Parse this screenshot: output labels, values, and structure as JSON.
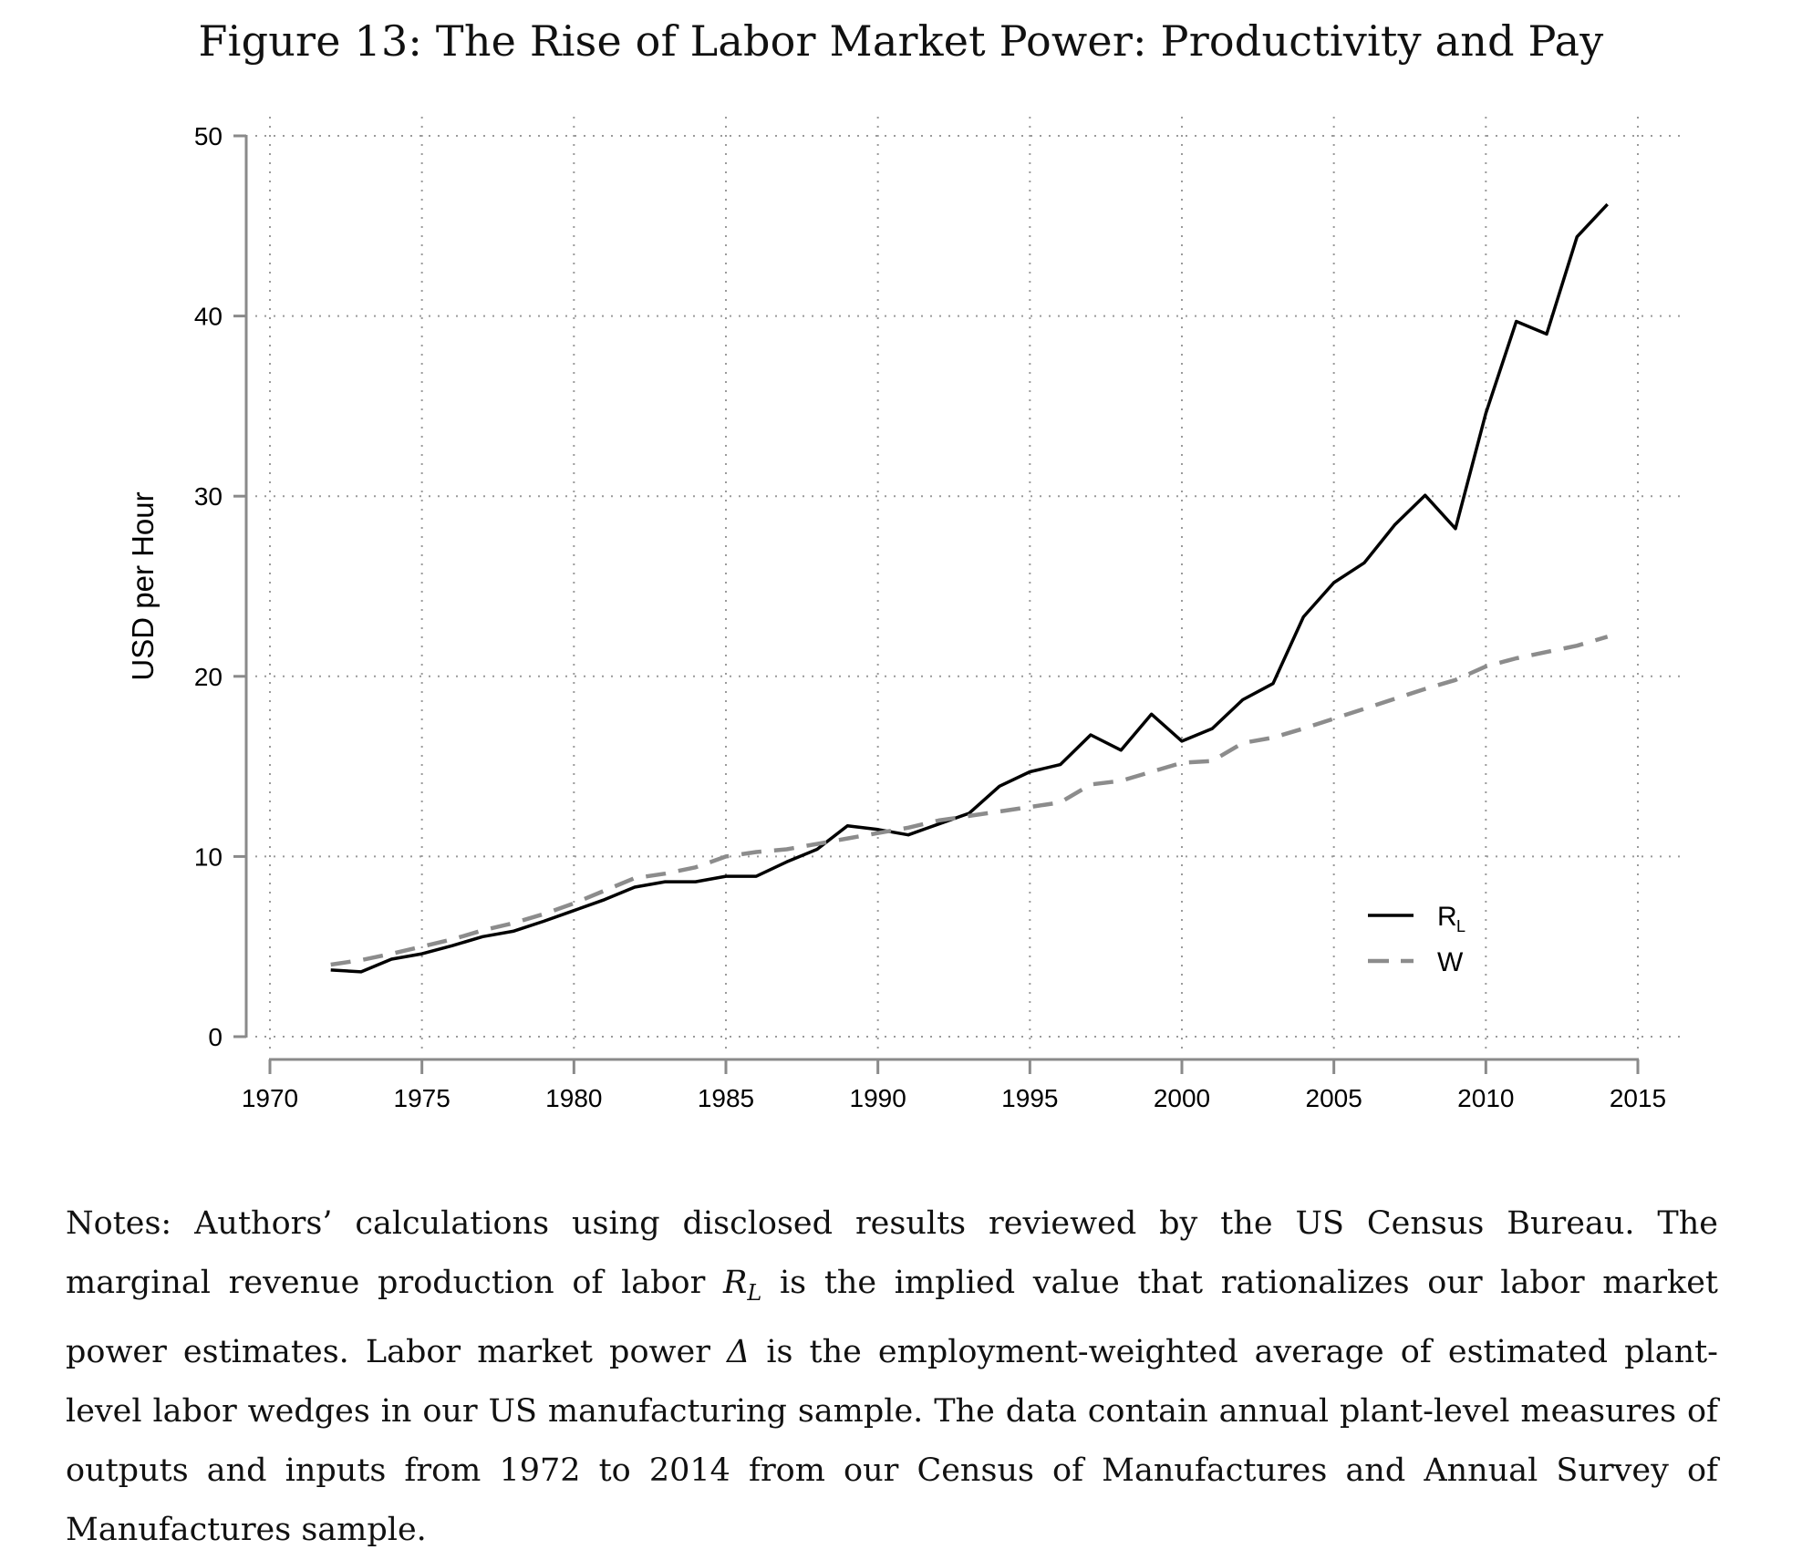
{
  "figure": {
    "title": "Figure 13: The Rise of Labor Market Power: Productivity and Pay"
  },
  "chart_data": {
    "type": "line",
    "title": "Figure 13: The Rise of Labor Market Power: Productivity and Pay",
    "xlabel": "",
    "ylabel": "USD per Hour",
    "xlim": [
      1970,
      2015
    ],
    "ylim": [
      0,
      50
    ],
    "xticks": [
      1970,
      1975,
      1980,
      1985,
      1990,
      1995,
      2000,
      2005,
      2010,
      2015
    ],
    "yticks": [
      0,
      10,
      20,
      30,
      40,
      50
    ],
    "grid": true,
    "legend_position": "bottom-right-inside",
    "x": [
      1972,
      1973,
      1974,
      1975,
      1976,
      1977,
      1978,
      1979,
      1980,
      1981,
      1982,
      1983,
      1984,
      1985,
      1986,
      1987,
      1988,
      1989,
      1990,
      1991,
      1992,
      1993,
      1994,
      1995,
      1996,
      1997,
      1998,
      1999,
      2000,
      2001,
      2002,
      2003,
      2004,
      2005,
      2006,
      2007,
      2008,
      2009,
      2010,
      2011,
      2012,
      2013,
      2014
    ],
    "series": [
      {
        "name": "R_L",
        "label_main": "R",
        "label_sub": "L",
        "style": "solid",
        "color": "#000000",
        "values": [
          3.7,
          3.6,
          4.3,
          4.6,
          5.05,
          5.55,
          5.85,
          6.4,
          7.0,
          7.6,
          8.3,
          8.6,
          8.6,
          8.9,
          8.9,
          9.7,
          10.4,
          11.7,
          11.5,
          11.2,
          11.8,
          12.4,
          13.9,
          14.7,
          15.1,
          16.75,
          15.9,
          17.9,
          16.4,
          17.1,
          18.7,
          19.6,
          23.3,
          25.2,
          26.3,
          28.4,
          30.05,
          28.2,
          34.6,
          39.7,
          39.0,
          44.4,
          46.2
        ]
      },
      {
        "name": "W",
        "label_main": "W",
        "label_sub": "",
        "style": "dashed",
        "color": "#8c8c8c",
        "values": [
          4.0,
          4.25,
          4.6,
          5.0,
          5.4,
          5.9,
          6.3,
          6.8,
          7.4,
          8.1,
          8.8,
          9.05,
          9.4,
          10.0,
          10.25,
          10.4,
          10.7,
          11.0,
          11.3,
          11.6,
          12.0,
          12.25,
          12.5,
          12.75,
          13.0,
          14.0,
          14.2,
          14.7,
          15.2,
          15.3,
          16.3,
          16.6,
          17.1,
          17.65,
          18.2,
          18.75,
          19.3,
          19.8,
          20.55,
          21.0,
          21.35,
          21.7,
          22.2
        ]
      }
    ]
  },
  "notes": {
    "prefix": "Notes: Authors’ calculations using disclosed results reviewed by the US Census Bureau. The marginal revenue production of labor ",
    "rl_symbol": "R",
    "rl_sub": "L",
    "middle": " is the implied value that rationalizes our labor market power estimates. Labor market power ",
    "delta_symbol": "Δ",
    "suffix": " is the employment-weighted average of estimated plant-level labor wedges in our US manufacturing sample. The data contain annual plant-level measures of outputs and inputs from 1972 to 2014 from our Census of Manufactures and Annual Survey of Manufactures sample."
  }
}
